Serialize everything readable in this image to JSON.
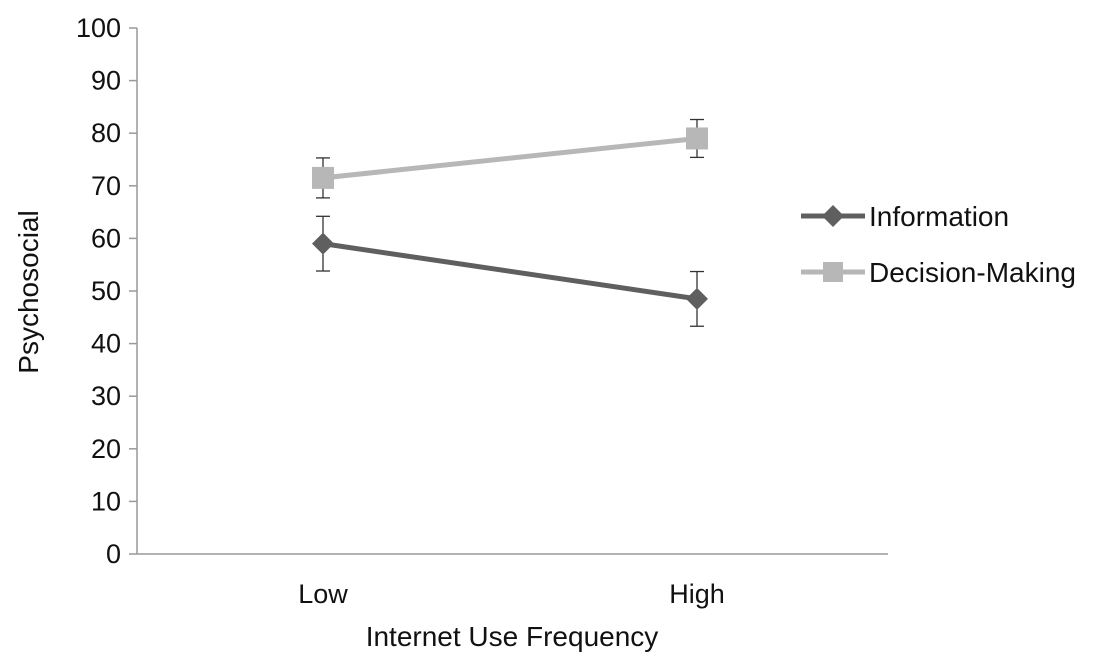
{
  "chart_data": {
    "type": "line",
    "title": "",
    "xlabel": "Internet Use Frequency",
    "ylabel": "Psychosocial",
    "categories": [
      "Low",
      "High"
    ],
    "ylim": [
      0,
      100
    ],
    "yticks": [
      0,
      10,
      20,
      30,
      40,
      50,
      60,
      70,
      80,
      90,
      100
    ],
    "grid": false,
    "legend_position": "right",
    "series": [
      {
        "name": "Information",
        "marker": "diamond",
        "color": "#5f5f5f",
        "values": [
          59,
          48.5
        ],
        "error": [
          5.2,
          5.2
        ]
      },
      {
        "name": "Decision-Making",
        "marker": "square",
        "color": "#b7b7b7",
        "values": [
          71.5,
          79
        ],
        "error": [
          3.8,
          3.6
        ]
      }
    ]
  }
}
